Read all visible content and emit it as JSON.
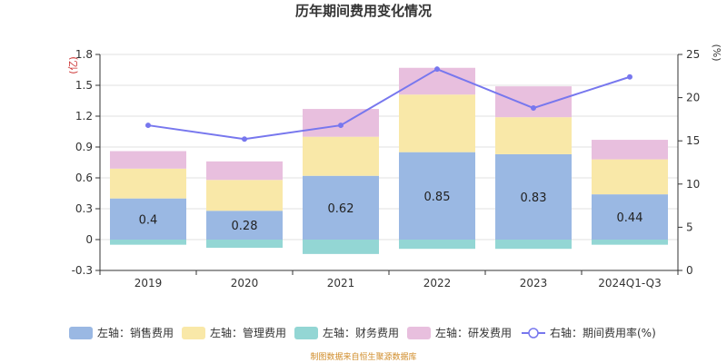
{
  "chart_data": {
    "type": "bar",
    "title": "历年期间费用变化情况",
    "categories": [
      "2019",
      "2020",
      "2021",
      "2022",
      "2023",
      "2024Q1-Q3"
    ],
    "left_axis": {
      "unit": "(亿)",
      "ylim": [
        -0.3,
        1.8
      ],
      "ticks": [
        "-0.3",
        "0",
        "0.3",
        "0.6",
        "0.9",
        "1.2",
        "1.5",
        "1.8"
      ]
    },
    "right_axis": {
      "unit": "(%)",
      "ylim": [
        0,
        25
      ],
      "ticks": [
        "0",
        "5",
        "10",
        "15",
        "20",
        "25"
      ]
    },
    "series": [
      {
        "name": "左轴：销售费用",
        "type": "bar",
        "color": "#9ab8e3",
        "values": [
          0.4,
          0.28,
          0.62,
          0.85,
          0.83,
          0.44
        ],
        "labels": [
          "0.4",
          "0.28",
          "0.62",
          "0.85",
          "0.83",
          "0.44"
        ]
      },
      {
        "name": "左轴：管理费用",
        "type": "bar",
        "color": "#f9e8a8",
        "values": [
          0.29,
          0.3,
          0.38,
          0.56,
          0.36,
          0.34
        ]
      },
      {
        "name": "左轴：财务费用",
        "type": "bar",
        "color": "#93d6d4",
        "values": [
          -0.05,
          -0.08,
          -0.14,
          -0.09,
          -0.09,
          -0.05
        ]
      },
      {
        "name": "左轴：研发费用",
        "type": "bar",
        "color": "#e8bfde",
        "values": [
          0.17,
          0.18,
          0.27,
          0.26,
          0.3,
          0.19
        ]
      },
      {
        "name": "右轴：期间费用率(%)",
        "type": "line",
        "color": "#7777ee",
        "values": [
          16.8,
          15.2,
          16.8,
          23.3,
          18.8,
          22.4
        ]
      }
    ],
    "grid": true,
    "legend_position": "bottom"
  },
  "source_note": "制图数据来自恒生聚源数据库"
}
